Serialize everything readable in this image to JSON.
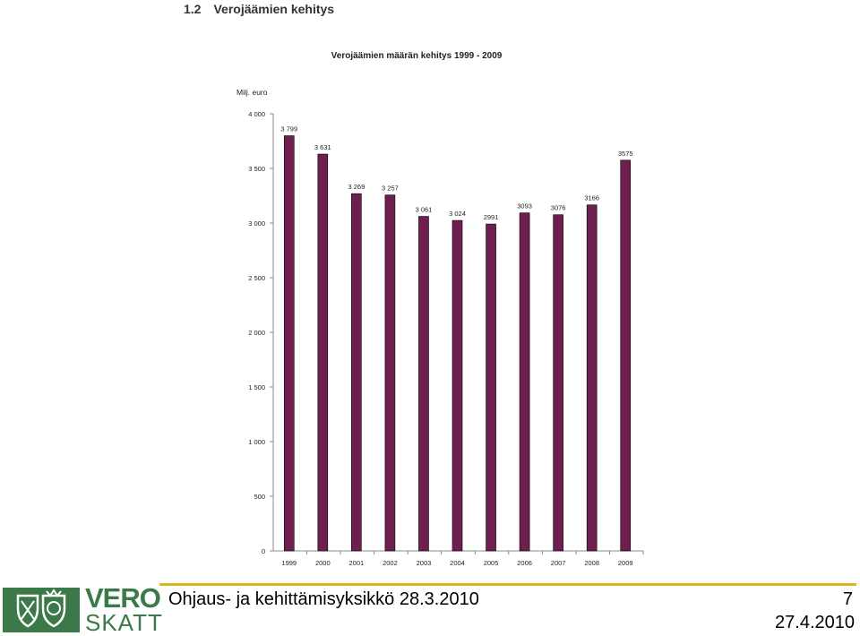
{
  "section": {
    "number": "1.2",
    "title": "Verojäämien kehitys"
  },
  "chart_data": {
    "type": "bar",
    "title": "Verojäämien määrän kehitys 1999 - 2009",
    "ylabel": "Milj. euro",
    "xlabel": "",
    "categories": [
      "1999",
      "2000",
      "2001",
      "2002",
      "2003",
      "2004",
      "2005",
      "2006",
      "2007",
      "2008",
      "2009"
    ],
    "values": [
      3799,
      3631,
      3269,
      3257,
      3061,
      3024,
      2991,
      3093,
      3076,
      3166,
      3575
    ],
    "value_labels": [
      "3 799",
      "3 631",
      "3 269",
      "3 257",
      "3 061",
      "3 024",
      "2991",
      "3093",
      "3076",
      "3166",
      "3575"
    ],
    "ylim": [
      0,
      4000
    ],
    "yticks": [
      0,
      500,
      1000,
      1500,
      2000,
      2500,
      3000,
      3500,
      4000
    ],
    "ytick_labels": [
      "0",
      "500",
      "1 000",
      "1 500",
      "2 000",
      "2 500",
      "3 000",
      "3 500",
      "4 000"
    ],
    "bar_color": "#6e1f50",
    "grid": false,
    "legend": "none"
  },
  "footer": {
    "text": "Ohjaus- ja  kehittämisyksikkö 28.3.2010",
    "page_number": "7",
    "date": "27.4.2010",
    "rule_color": "#e3b31c"
  },
  "logo": {
    "line1": "VERO",
    "line2": "SKATT",
    "color": "#3b7a48"
  }
}
